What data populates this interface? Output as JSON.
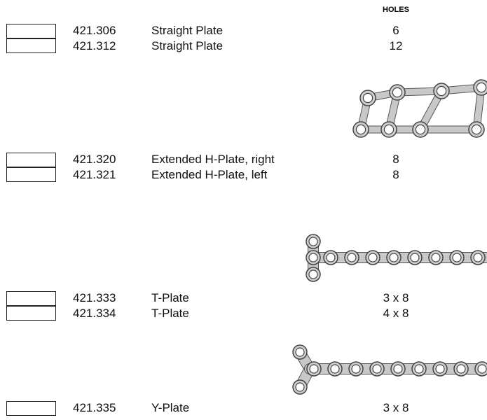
{
  "header": {
    "holes": "HOLES"
  },
  "groups": [
    {
      "rows": [
        {
          "code": "421.306",
          "name": "Straight Plate",
          "holes": "6"
        },
        {
          "code": "421.312",
          "name": "Straight Plate",
          "holes": "12"
        }
      ]
    },
    {
      "rows": [
        {
          "code": "421.320",
          "name": "Extended H-Plate, right",
          "holes": "8"
        },
        {
          "code": "421.321",
          "name": "Extended H-Plate, left",
          "holes": "8"
        }
      ]
    },
    {
      "rows": [
        {
          "code": "421.333",
          "name": "T-Plate",
          "holes": "3 x 8"
        },
        {
          "code": "421.334",
          "name": "T-Plate",
          "holes": "4 x 8"
        }
      ]
    },
    {
      "rows": [
        {
          "code": "421.335",
          "name": "Y-Plate",
          "holes": "3 x 8"
        }
      ]
    }
  ]
}
